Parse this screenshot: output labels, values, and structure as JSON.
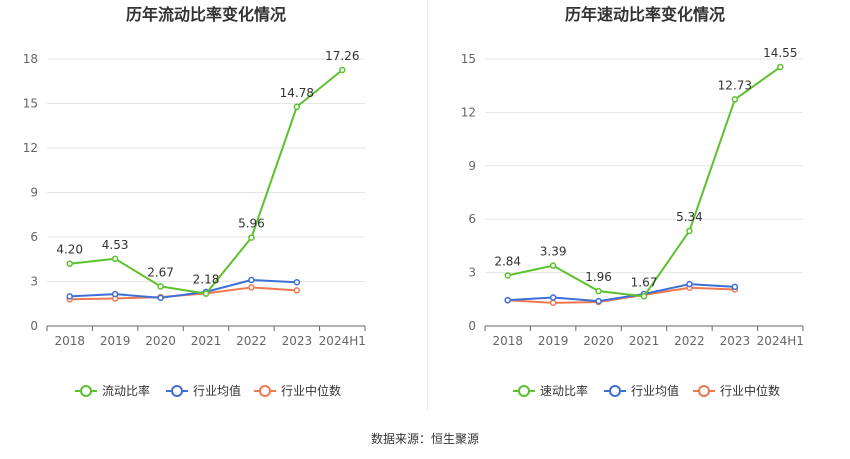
{
  "source_text": "数据来源：恒生聚源",
  "chart_data": [
    {
      "type": "line",
      "title": "历年流动比率变化情况",
      "categories": [
        "2018",
        "2019",
        "2020",
        "2021",
        "2022",
        "2023",
        "2024H1"
      ],
      "y_ticks": [
        0,
        3,
        6,
        9,
        12,
        15,
        18
      ],
      "ylim": [
        0,
        18
      ],
      "grid": true,
      "legend_position": "bottom-center",
      "series": [
        {
          "name": "流动比率",
          "color": "#5cc12b",
          "values": [
            4.2,
            4.53,
            2.67,
            2.18,
            5.96,
            14.78,
            17.26
          ],
          "labels": [
            "4.20",
            "4.53",
            "2.67",
            "2.18",
            "5.96",
            "14.78",
            "17.26"
          ]
        },
        {
          "name": "行业均值",
          "color": "#3d6fd8",
          "values": [
            2.0,
            2.15,
            1.9,
            2.3,
            3.1,
            2.95,
            null
          ]
        },
        {
          "name": "行业中位数",
          "color": "#f07850",
          "values": [
            1.8,
            1.85,
            1.95,
            2.2,
            2.6,
            2.4,
            null
          ]
        }
      ]
    },
    {
      "type": "line",
      "title": "历年速动比率变化情况",
      "categories": [
        "2018",
        "2019",
        "2020",
        "2021",
        "2022",
        "2023",
        "2024H1"
      ],
      "y_ticks": [
        0,
        3,
        6,
        9,
        12,
        15
      ],
      "ylim": [
        0,
        15
      ],
      "grid": true,
      "legend_position": "bottom-center",
      "series": [
        {
          "name": "速动比率",
          "color": "#5cc12b",
          "values": [
            2.84,
            3.39,
            1.96,
            1.67,
            5.34,
            12.73,
            14.55
          ],
          "labels": [
            "2.84",
            "3.39",
            "1.96",
            "1.67",
            "5.34",
            "12.73",
            "14.55"
          ]
        },
        {
          "name": "行业均值",
          "color": "#3d6fd8",
          "values": [
            1.45,
            1.6,
            1.4,
            1.8,
            2.35,
            2.2,
            null
          ]
        },
        {
          "name": "行业中位数",
          "color": "#f07850",
          "values": [
            1.45,
            1.3,
            1.35,
            1.75,
            2.15,
            2.05,
            null
          ]
        }
      ]
    }
  ]
}
